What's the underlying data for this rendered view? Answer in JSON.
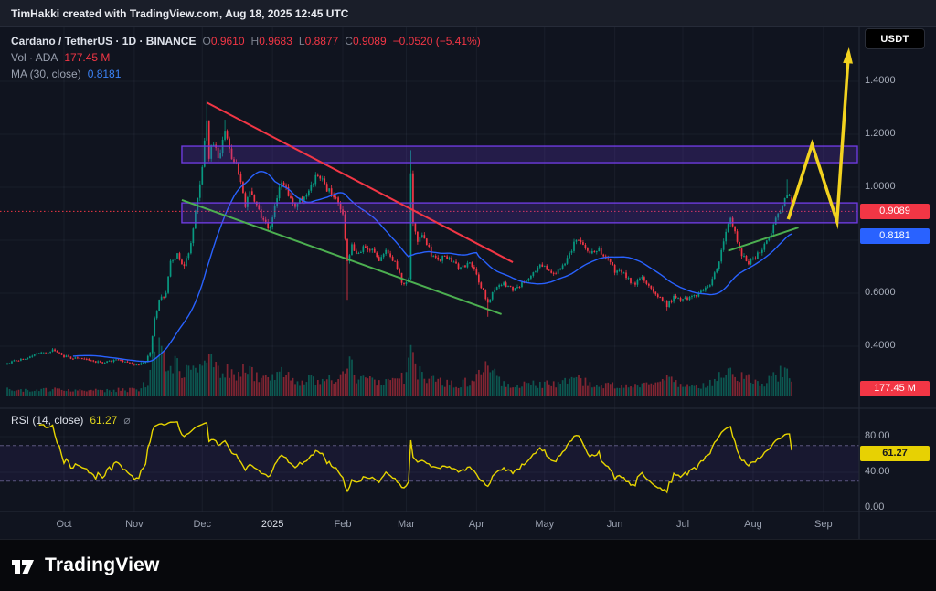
{
  "attribution": "TimHakki created with TradingView.com, Aug 18, 2025 12:45 UTC",
  "symbol_bar": {
    "title": "Cardano / TetherUS · 1D · BINANCE",
    "ohlc": {
      "o_label": "O",
      "o": "0.9610",
      "h_label": "H",
      "h": "0.9683",
      "l_label": "L",
      "l": "0.8877",
      "c_label": "C",
      "c": "0.9089",
      "change": "−0.0520 (−5.41%)"
    },
    "volume_row": {
      "label": "Vol · ADA",
      "value": "177.45 M"
    },
    "ma_row": {
      "label": "MA (30, close)",
      "value": "0.8181"
    }
  },
  "currency_button": "USDT",
  "price_axis": {
    "ticks": [
      {
        "value": 1.4,
        "label": "1.4000"
      },
      {
        "value": 1.2,
        "label": "1.2000"
      },
      {
        "value": 1.0,
        "label": "1.0000"
      },
      {
        "value": 0.6,
        "label": "0.6000"
      },
      {
        "value": 0.4,
        "label": "0.4000"
      }
    ],
    "last_badge": "0.9089",
    "ma_badge": "0.8181",
    "vol_badge": "177.45 M"
  },
  "rsi": {
    "title": "RSI (14, close)",
    "value": "61.27",
    "icon": "⌀",
    "badge": "61.27",
    "ticks": [
      {
        "value": 80,
        "label": "80.00"
      },
      {
        "value": 40,
        "label": "40.00"
      },
      {
        "value": 0,
        "label": "0.00"
      }
    ]
  },
  "time_axis": {
    "labels": [
      {
        "label": "Oct",
        "day": 25,
        "emph": false
      },
      {
        "label": "Nov",
        "day": 56,
        "emph": false
      },
      {
        "label": "Dec",
        "day": 86,
        "emph": false
      },
      {
        "label": "2025",
        "day": 117,
        "emph": true
      },
      {
        "label": "Feb",
        "day": 148,
        "emph": false
      },
      {
        "label": "Mar",
        "day": 176,
        "emph": false
      },
      {
        "label": "Apr",
        "day": 207,
        "emph": false
      },
      {
        "label": "May",
        "day": 237,
        "emph": false
      },
      {
        "label": "Jun",
        "day": 268,
        "emph": false
      },
      {
        "label": "Jul",
        "day": 298,
        "emph": false
      },
      {
        "label": "Aug",
        "day": 329,
        "emph": false
      },
      {
        "label": "Sep",
        "day": 360,
        "emph": false
      }
    ]
  },
  "footer": {
    "brand": "TradingView"
  },
  "chart_data": {
    "type": "candlestick",
    "symbol": "ADAUSDT",
    "exchange": "BINANCE",
    "timeframe": "1D",
    "days": 347,
    "last_candle": {
      "open": 0.961,
      "high": 0.9683,
      "low": 0.8877,
      "close": 0.9089,
      "change": -0.052,
      "change_pct": -5.41
    },
    "indicators": [
      {
        "name": "Volume",
        "value_m": 177.45
      },
      {
        "name": "MA",
        "period": 30,
        "source": "close",
        "value": 0.8181
      },
      {
        "name": "RSI",
        "period": 14,
        "source": "close",
        "value": 61.27,
        "bands": [
          70,
          30
        ]
      }
    ],
    "axis": {
      "grid_prices": [
        1.4,
        1.2,
        1.0,
        0.8,
        0.6,
        0.4
      ],
      "rsi_grid": [
        80,
        40
      ]
    },
    "colors": {
      "up": "#089981",
      "down": "#f23645",
      "ma": "#2962ff",
      "rsi_line": "#e7d500",
      "zone_fill": "rgba(109,59,221,0.22)",
      "zone_border": "#6d3bdd",
      "arrow": "#f2d21f",
      "price_line": "#f23645"
    },
    "close_anchors": [
      [
        0,
        0.335
      ],
      [
        6,
        0.35
      ],
      [
        14,
        0.373
      ],
      [
        20,
        0.385
      ],
      [
        25,
        0.362
      ],
      [
        31,
        0.352
      ],
      [
        37,
        0.345
      ],
      [
        43,
        0.338
      ],
      [
        48,
        0.35
      ],
      [
        53,
        0.336
      ],
      [
        58,
        0.332
      ],
      [
        61,
        0.34
      ],
      [
        63,
        0.38
      ],
      [
        65,
        0.5
      ],
      [
        67,
        0.575
      ],
      [
        70,
        0.6
      ],
      [
        72,
        0.72
      ],
      [
        75,
        0.745
      ],
      [
        78,
        0.7
      ],
      [
        81,
        0.79
      ],
      [
        83,
        0.9
      ],
      [
        85,
        1.02
      ],
      [
        86,
        1.09
      ],
      [
        88,
        1.25
      ],
      [
        89,
        1.12
      ],
      [
        91,
        1.17
      ],
      [
        93,
        1.1
      ],
      [
        96,
        1.21
      ],
      [
        99,
        1.12
      ],
      [
        102,
        1.06
      ],
      [
        105,
        0.935
      ],
      [
        107,
        0.985
      ],
      [
        110,
        0.93
      ],
      [
        113,
        0.87
      ],
      [
        116,
        0.845
      ],
      [
        118,
        0.925
      ],
      [
        121,
        1.03
      ],
      [
        124,
        0.975
      ],
      [
        127,
        0.93
      ],
      [
        131,
        0.965
      ],
      [
        134,
        1.0
      ],
      [
        137,
        1.055
      ],
      [
        140,
        1.005
      ],
      [
        143,
        0.975
      ],
      [
        146,
        0.945
      ],
      [
        148,
        0.9
      ],
      [
        150,
        0.715
      ],
      [
        152,
        0.775
      ],
      [
        155,
        0.745
      ],
      [
        158,
        0.78
      ],
      [
        161,
        0.76
      ],
      [
        164,
        0.725
      ],
      [
        167,
        0.77
      ],
      [
        170,
        0.73
      ],
      [
        172,
        0.695
      ],
      [
        174,
        0.645
      ],
      [
        176,
        0.635
      ],
      [
        177,
        0.66
      ],
      [
        178,
        1.05
      ],
      [
        179,
        0.865
      ],
      [
        181,
        0.8
      ],
      [
        184,
        0.815
      ],
      [
        187,
        0.745
      ],
      [
        190,
        0.72
      ],
      [
        193,
        0.745
      ],
      [
        197,
        0.715
      ],
      [
        200,
        0.69
      ],
      [
        204,
        0.725
      ],
      [
        207,
        0.665
      ],
      [
        209,
        0.625
      ],
      [
        212,
        0.565
      ],
      [
        215,
        0.615
      ],
      [
        219,
        0.635
      ],
      [
        223,
        0.615
      ],
      [
        227,
        0.635
      ],
      [
        231,
        0.665
      ],
      [
        235,
        0.71
      ],
      [
        238,
        0.695
      ],
      [
        242,
        0.675
      ],
      [
        246,
        0.705
      ],
      [
        250,
        0.785
      ],
      [
        252,
        0.8
      ],
      [
        254,
        0.79
      ],
      [
        257,
        0.745
      ],
      [
        261,
        0.765
      ],
      [
        265,
        0.725
      ],
      [
        268,
        0.685
      ],
      [
        272,
        0.675
      ],
      [
        276,
        0.635
      ],
      [
        280,
        0.655
      ],
      [
        284,
        0.615
      ],
      [
        288,
        0.585
      ],
      [
        291,
        0.555
      ],
      [
        294,
        0.585
      ],
      [
        298,
        0.575
      ],
      [
        302,
        0.585
      ],
      [
        306,
        0.605
      ],
      [
        310,
        0.635
      ],
      [
        313,
        0.7
      ],
      [
        315,
        0.755
      ],
      [
        317,
        0.825
      ],
      [
        319,
        0.89
      ],
      [
        321,
        0.825
      ],
      [
        324,
        0.745
      ],
      [
        327,
        0.715
      ],
      [
        330,
        0.735
      ],
      [
        333,
        0.765
      ],
      [
        336,
        0.805
      ],
      [
        339,
        0.875
      ],
      [
        342,
        0.935
      ],
      [
        344,
        0.975
      ],
      [
        345,
        0.961
      ],
      [
        346,
        0.9089
      ]
    ],
    "wick_overrides": [
      [
        88,
        "h",
        1.326
      ],
      [
        96,
        "h",
        1.255
      ],
      [
        150,
        "l",
        0.575
      ],
      [
        178,
        "h",
        1.14
      ],
      [
        212,
        "l",
        0.511
      ],
      [
        291,
        "l",
        0.535
      ],
      [
        344,
        "h",
        1.03
      ]
    ],
    "volume_anchors_m": [
      [
        0,
        90
      ],
      [
        20,
        80
      ],
      [
        40,
        70
      ],
      [
        58,
        85
      ],
      [
        62,
        180
      ],
      [
        64,
        520
      ],
      [
        66,
        620
      ],
      [
        68,
        480
      ],
      [
        72,
        400
      ],
      [
        76,
        340
      ],
      [
        80,
        300
      ],
      [
        84,
        380
      ],
      [
        88,
        560
      ],
      [
        92,
        330
      ],
      [
        96,
        300
      ],
      [
        100,
        260
      ],
      [
        105,
        400
      ],
      [
        110,
        240
      ],
      [
        116,
        200
      ],
      [
        121,
        280
      ],
      [
        127,
        190
      ],
      [
        134,
        200
      ],
      [
        140,
        210
      ],
      [
        146,
        180
      ],
      [
        150,
        480
      ],
      [
        154,
        240
      ],
      [
        160,
        190
      ],
      [
        166,
        170
      ],
      [
        172,
        200
      ],
      [
        176,
        230
      ],
      [
        178,
        520
      ],
      [
        181,
        300
      ],
      [
        186,
        200
      ],
      [
        192,
        160
      ],
      [
        200,
        150
      ],
      [
        206,
        200
      ],
      [
        212,
        340
      ],
      [
        218,
        170
      ],
      [
        226,
        140
      ],
      [
        234,
        150
      ],
      [
        242,
        140
      ],
      [
        250,
        210
      ],
      [
        258,
        160
      ],
      [
        266,
        140
      ],
      [
        274,
        130
      ],
      [
        282,
        140
      ],
      [
        291,
        230
      ],
      [
        298,
        120
      ],
      [
        306,
        130
      ],
      [
        313,
        200
      ],
      [
        317,
        290
      ],
      [
        321,
        230
      ],
      [
        327,
        210
      ],
      [
        333,
        170
      ],
      [
        339,
        240
      ],
      [
        343,
        330
      ],
      [
        346,
        177.45
      ]
    ],
    "zones": [
      {
        "name": "upper-resistance-zone",
        "from_day": 77,
        "to_day": 375,
        "price_low": 1.093,
        "price_high": 1.155
      },
      {
        "name": "lower-support-zone",
        "from_day": 77,
        "to_day": 375,
        "price_low": 0.866,
        "price_high": 0.941
      }
    ],
    "trendlines": [
      {
        "name": "descending-resistance-trendline",
        "color": "#f23645",
        "from_day": 88,
        "from_price": 1.32,
        "to_day": 223,
        "to_price": 0.717,
        "width": 2
      },
      {
        "name": "descending-support-trendline",
        "color": "#4caf50",
        "from_day": 77,
        "from_price": 0.952,
        "to_day": 218,
        "to_price": 0.521,
        "width": 2
      },
      {
        "name": "august-support-trendline",
        "color": "#4caf50",
        "from_day": 318,
        "from_price": 0.76,
        "to_day": 349,
        "to_price": 0.848,
        "width": 2
      }
    ],
    "projection_arrow": {
      "points": [
        [
          344.5,
          0.879
        ],
        [
          355,
          1.162
        ],
        [
          366,
          0.872
        ],
        [
          371,
          1.493
        ]
      ],
      "width": 3.5
    }
  }
}
